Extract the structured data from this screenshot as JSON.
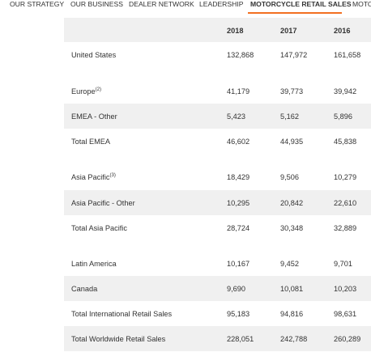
{
  "nav": {
    "items": [
      "OUR STRATEGY",
      "OUR BUSINESS",
      "DEALER NETWORK",
      "LEADERSHIP",
      "MOTORCYCLE RETAIL SALES",
      "MOTO"
    ],
    "active": 4
  },
  "table": {
    "columns": [
      "2018",
      "2017",
      "2016"
    ],
    "rows": [
      {
        "label": "United States",
        "values": [
          "132,868",
          "147,972",
          "161,658"
        ]
      },
      {
        "label": "Europe",
        "note": "(2)",
        "values": [
          "41,179",
          "39,773",
          "39,942"
        ]
      },
      {
        "label": "EMEA - Other",
        "values": [
          "5,423",
          "5,162",
          "5,896"
        ]
      },
      {
        "label": "Total EMEA",
        "values": [
          "46,602",
          "44,935",
          "45,838"
        ]
      },
      {
        "label": "Asia Pacific",
        "note": "(3)",
        "values": [
          "18,429",
          "9,506",
          "10,279"
        ]
      },
      {
        "label": "Asia Pacific - Other",
        "values": [
          "10,295",
          "20,842",
          "22,610"
        ]
      },
      {
        "label": "Total Asia Pacific",
        "values": [
          "28,724",
          "30,348",
          "32,889"
        ]
      },
      {
        "label": "Latin America",
        "values": [
          "10,167",
          "9,452",
          "9,701"
        ]
      },
      {
        "label": "Canada",
        "values": [
          "9,690",
          "10,081",
          "10,203"
        ]
      },
      {
        "label": "Total International Retail Sales",
        "values": [
          "95,183",
          "94,816",
          "98,631"
        ]
      },
      {
        "label": "Total Worldwide Retail Sales",
        "values": [
          "228,051",
          "242,788",
          "260,289"
        ]
      }
    ]
  }
}
